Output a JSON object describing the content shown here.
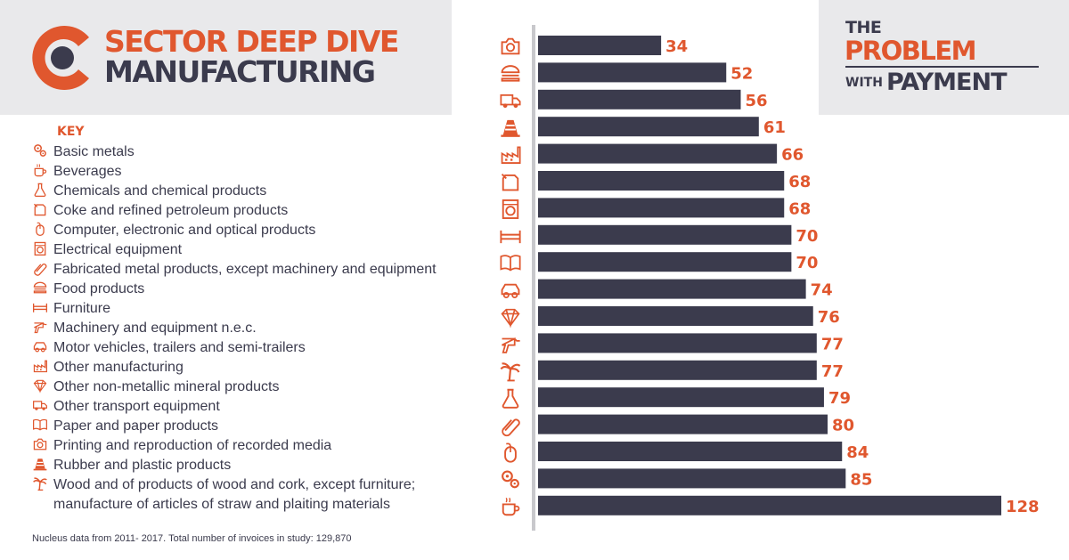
{
  "header": {
    "title_line1": "SECTOR DEEP DIVE",
    "title_line2": "MANUFACTURING"
  },
  "brand": {
    "the": "THE",
    "problem": "PROBLEM",
    "with": "WITH",
    "payment": "PAYMENT"
  },
  "key": {
    "title": "KEY",
    "items": [
      {
        "label": "Basic metals",
        "icon": "gears-icon"
      },
      {
        "label": "Beverages",
        "icon": "coffee-cup-icon"
      },
      {
        "label": "Chemicals and chemical products",
        "icon": "flask-icon"
      },
      {
        "label": "Coke and refined petroleum products",
        "icon": "fuel-can-icon"
      },
      {
        "label": "Computer, electronic and optical products",
        "icon": "mouse-icon"
      },
      {
        "label": "Electrical equipment",
        "icon": "washing-machine-icon"
      },
      {
        "label": "Fabricated metal products, except machinery and equipment",
        "icon": "paperclip-icon"
      },
      {
        "label": "Food products",
        "icon": "burger-icon"
      },
      {
        "label": "Furniture",
        "icon": "bed-icon"
      },
      {
        "label": "Machinery and equipment n.e.c.",
        "icon": "drill-icon"
      },
      {
        "label": "Motor vehicles, trailers and semi-trailers",
        "icon": "car-icon"
      },
      {
        "label": "Other manufacturing",
        "icon": "factory-icon"
      },
      {
        "label": "Other non-metallic mineral products",
        "icon": "diamond-icon"
      },
      {
        "label": "Other transport equipment",
        "icon": "truck-icon"
      },
      {
        "label": "Paper and paper products",
        "icon": "book-icon"
      },
      {
        "label": "Printing and reproduction of recorded media",
        "icon": "camera-icon"
      },
      {
        "label": "Rubber and plastic products",
        "icon": "traffic-cone-icon"
      },
      {
        "label": "Wood and of products of wood and cork, except furniture;",
        "label2": "manufacture of articles of straw and plaiting materials",
        "icon": "palm-tree-icon"
      }
    ]
  },
  "footnote": "Nucleus data from 2011- 2017. Total number of invoices in study: 129,870",
  "colors": {
    "accent": "#e0572e",
    "bar": "#3b3b4d",
    "header_bg": "#e9e9eb",
    "axis": "#c8c8cc"
  },
  "chart_data": {
    "type": "bar",
    "orientation": "horizontal",
    "xlim": [
      0,
      128
    ],
    "grid": false,
    "categories": [
      "Printing and reproduction of recorded media",
      "Food products",
      "Other transport equipment",
      "Rubber and plastic products",
      "Other manufacturing",
      "Coke and refined petroleum products",
      "Electrical equipment",
      "Furniture",
      "Paper and paper products",
      "Motor vehicles, trailers and semi-trailers",
      "Other non-metallic mineral products",
      "Machinery and equipment n.e.c.",
      "Wood and of products of wood and cork, except furniture; manufacture of articles of straw and plaiting materials",
      "Chemicals and chemical products",
      "Fabricated metal products, except machinery and equipment",
      "Computer, electronic and optical products",
      "Basic metals",
      "Beverages"
    ],
    "icons": [
      "camera-icon",
      "burger-icon",
      "truck-icon",
      "traffic-cone-icon",
      "factory-icon",
      "fuel-can-icon",
      "washing-machine-icon",
      "bed-icon",
      "book-icon",
      "car-icon",
      "diamond-icon",
      "drill-icon",
      "palm-tree-icon",
      "flask-icon",
      "paperclip-icon",
      "mouse-icon",
      "gears-icon",
      "coffee-cup-icon"
    ],
    "values": [
      34,
      52,
      56,
      61,
      66,
      68,
      68,
      70,
      70,
      74,
      76,
      77,
      77,
      79,
      80,
      84,
      85,
      128
    ]
  }
}
